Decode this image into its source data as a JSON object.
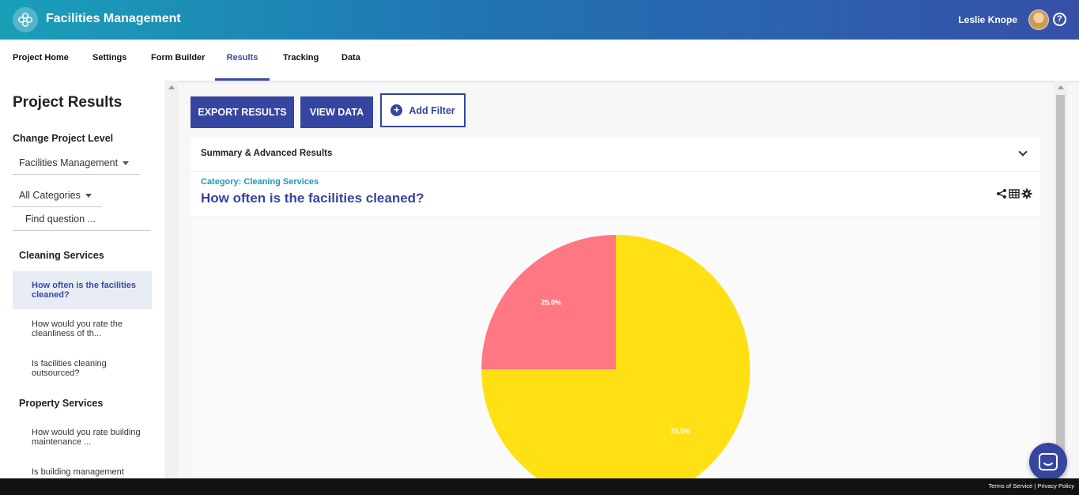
{
  "header": {
    "app_title": "Facilities Management",
    "user_name": "Leslie Knope",
    "help_glyph": "?"
  },
  "nav": {
    "items": [
      {
        "label": "Project Home"
      },
      {
        "label": "Settings"
      },
      {
        "label": "Form Builder"
      },
      {
        "label": "Results",
        "active": true
      },
      {
        "label": "Tracking"
      },
      {
        "label": "Data"
      }
    ]
  },
  "sidebar": {
    "title": "Project Results",
    "change_level_label": "Change Project Level",
    "level_select": "Facilities Management",
    "category_select": "All Categories",
    "search_placeholder": "Find question ...",
    "categories": [
      {
        "name": "Cleaning Services",
        "questions": [
          {
            "text": "How often is the facilities cleaned?",
            "active": true
          },
          {
            "text": "How would you rate the cleanliness of th..."
          },
          {
            "text": "Is facilities cleaning outsourced?"
          }
        ]
      },
      {
        "name": "Property Services",
        "questions": [
          {
            "text": "How would you rate building maintenance ..."
          },
          {
            "text": "Is building management"
          }
        ]
      }
    ]
  },
  "toolbar": {
    "export_label": "EXPORT RESULTS",
    "view_data_label": "VIEW DATA",
    "add_filter_label": "Add Filter"
  },
  "panel": {
    "summary_label": "Summary & Advanced Results",
    "category_label": "Category: Cleaning Services",
    "question_title": "How often is the facilities cleaned?"
  },
  "chart_data": {
    "type": "pie",
    "slices": [
      {
        "value": 75.0,
        "label": "75.0%",
        "color": "#ffe014"
      },
      {
        "value": 25.0,
        "label": "25.0%",
        "color": "#ff7782"
      }
    ],
    "start_angle_deg": 0
  },
  "footer": {
    "terms": "Terms of Service",
    "separator": "|",
    "privacy": "Privacy Policy"
  },
  "colors": {
    "primary": "#3545a0",
    "accent": "#1c98b8",
    "header_from": "#1a9fb8",
    "header_to": "#3650a8"
  }
}
